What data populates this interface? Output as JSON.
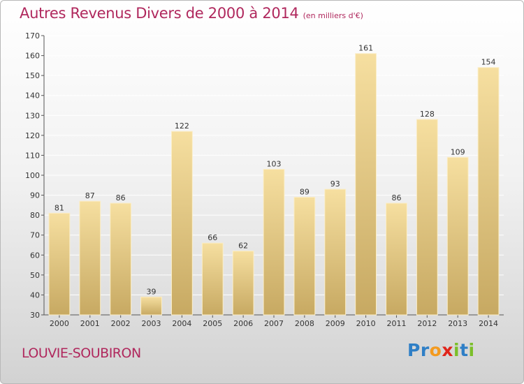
{
  "title": "Autres Revenus Divers de 2000 à 2014",
  "unit": "(en milliers d'€)",
  "location": "LOUVIE-SOUBIRON",
  "brand": {
    "letters": [
      "P",
      "r",
      "o",
      "x",
      "i",
      "t",
      "i"
    ],
    "colors": [
      "#2f7fc6",
      "#2f7fc6",
      "#f39a1f",
      "#e0251b",
      "#7bbf2a",
      "#2f7fc6",
      "#7bbf2a"
    ]
  },
  "colors": {
    "title": "#b0285d",
    "bar_top": "#f6dfa0",
    "bar_bottom": "#c7a962",
    "axis": "#555555",
    "grid": "#ffffff"
  },
  "chart_data": {
    "type": "bar",
    "categories": [
      "2000",
      "2001",
      "2002",
      "2003",
      "2004",
      "2005",
      "2006",
      "2007",
      "2008",
      "2009",
      "2010",
      "2011",
      "2012",
      "2013",
      "2014"
    ],
    "values": [
      81,
      87,
      86,
      39,
      122,
      66,
      62,
      103,
      89,
      93,
      161,
      86,
      128,
      109,
      154
    ],
    "yticks": [
      30,
      40,
      50,
      60,
      70,
      80,
      90,
      100,
      110,
      120,
      130,
      140,
      150,
      160,
      170
    ],
    "ylim": [
      30,
      170
    ],
    "grid": true,
    "xlabel": "",
    "ylabel": ""
  }
}
